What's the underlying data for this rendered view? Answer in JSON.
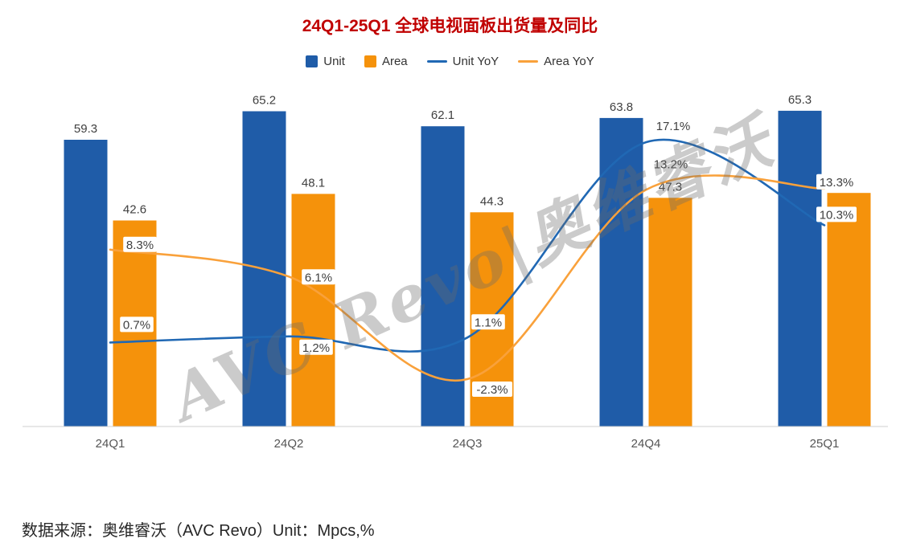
{
  "title": "24Q1-25Q1 全球电视面板出货量及同比",
  "watermark": "AVC Revo|奥维睿沃",
  "source_note": "数据来源：奥维睿沃（AVC Revo）Unit：Mpcs,%",
  "colors": {
    "title": "#C00000",
    "unit_bar": "#1F5CA8",
    "area_bar": "#F5920B",
    "unit_line": "#2068B4",
    "area_line": "#F9A13B",
    "label_text": "#404040",
    "axis_line": "#CFCFCF",
    "axis_label": "#555555"
  },
  "legend": [
    {
      "label": "Unit",
      "swatch": "square",
      "color_key": "unit_bar"
    },
    {
      "label": "Area",
      "swatch": "square",
      "color_key": "area_bar"
    },
    {
      "label": "Unit YoY",
      "swatch": "line",
      "color_key": "unit_line"
    },
    {
      "label": "Area YoY",
      "swatch": "line",
      "color_key": "area_line"
    }
  ],
  "chart_data": {
    "type": "combo_bar_line",
    "title": "24Q1-25Q1 全球电视面板出货量及同比",
    "categories": [
      "24Q1",
      "24Q2",
      "24Q3",
      "24Q4",
      "25Q1"
    ],
    "series": [
      {
        "name": "Unit",
        "type": "bar",
        "axis": "left",
        "unit": "Mpcs",
        "color_key": "unit_bar",
        "values": [
          59.3,
          65.2,
          62.1,
          63.8,
          65.3
        ],
        "labels": [
          "59.3",
          "65.2",
          "62.1",
          "63.8",
          "65.3"
        ]
      },
      {
        "name": "Area",
        "type": "bar",
        "axis": "left",
        "unit": "Mpcs",
        "color_key": "area_bar",
        "values": [
          42.6,
          48.1,
          44.3,
          47.3,
          48.3
        ],
        "labels": [
          "42.6",
          "48.1",
          "44.3",
          "47.3",
          ""
        ]
      },
      {
        "name": "Unit YoY",
        "type": "line",
        "axis": "right",
        "unit": "%",
        "color_key": "unit_line",
        "values": [
          0.7,
          1.2,
          1.1,
          17.1,
          10.3
        ],
        "labels": [
          "0.7%",
          "1.2%",
          "1.1%",
          "17.1%",
          "10.3%"
        ]
      },
      {
        "name": "Area YoY",
        "type": "line",
        "axis": "right",
        "unit": "%",
        "color_key": "area_line",
        "values": [
          8.3,
          6.1,
          -2.3,
          13.2,
          13.3
        ],
        "labels": [
          "8.3%",
          "6.1%",
          "-2.3%",
          "13.2%",
          "13.3%"
        ]
      }
    ],
    "left_axis": {
      "visible": false,
      "range_estimate": [
        0,
        72
      ]
    },
    "right_axis": {
      "visible": false,
      "range_estimate": [
        -6,
        22
      ]
    },
    "grid": false,
    "smooth_lines": true,
    "legend_position": "top"
  }
}
